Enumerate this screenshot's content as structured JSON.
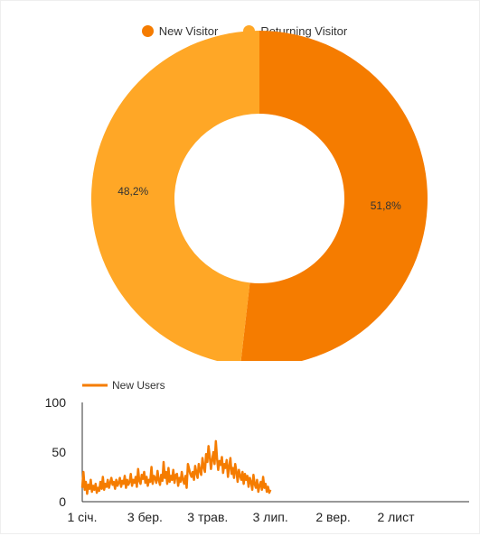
{
  "chart_data": [
    {
      "type": "pie",
      "variant": "donut",
      "legend_position": "top",
      "slices": [
        {
          "label": "New Visitor",
          "value": 51.8,
          "value_label": "51,8%",
          "color": "#f57c00"
        },
        {
          "label": "Returning Visitor",
          "value": 48.2,
          "value_label": "48,2%",
          "color": "#ffa726"
        }
      ]
    },
    {
      "type": "line",
      "legend_position": "top-left",
      "ylim": [
        0,
        100
      ],
      "yticks": [
        0,
        50,
        100
      ],
      "xtick_labels": [
        "1 січ.",
        "3 бер.",
        "3 трав.",
        "3 лип.",
        "2 вер.",
        "2 лист"
      ],
      "xtick_days": [
        0,
        61,
        122,
        183,
        244,
        305
      ],
      "series": [
        {
          "name": "New Users",
          "color": "#f57c00",
          "values": [
            14,
            30,
            12,
            20,
            8,
            17,
            13,
            22,
            10,
            16,
            12,
            18,
            9,
            14,
            11,
            20,
            13,
            25,
            12,
            18,
            15,
            22,
            14,
            19,
            24,
            17,
            20,
            13,
            22,
            16,
            19,
            24,
            15,
            21,
            18,
            26,
            14,
            22,
            17,
            20,
            28,
            16,
            22,
            19,
            25,
            15,
            33,
            21,
            18,
            27,
            23,
            30,
            19,
            25,
            16,
            22,
            20,
            35,
            18,
            26,
            24,
            19,
            31,
            22,
            17,
            27,
            21,
            40,
            24,
            30,
            18,
            34,
            20,
            26,
            22,
            32,
            19,
            27,
            28,
            16,
            24,
            20,
            30,
            22,
            18,
            26,
            14,
            38,
            33,
            28,
            25,
            30,
            22,
            36,
            29,
            24,
            38,
            31,
            27,
            44,
            35,
            30,
            48,
            40,
            56,
            46,
            33,
            42,
            50,
            38,
            61,
            44,
            32,
            41,
            37,
            45,
            29,
            38,
            34,
            42,
            25,
            35,
            44,
            28,
            34,
            24,
            38,
            30,
            20,
            32,
            26,
            22,
            30,
            18,
            28,
            22,
            26,
            15,
            24,
            20,
            12,
            27,
            18,
            14,
            22,
            10,
            16,
            20,
            12,
            25,
            14,
            18,
            10,
            15,
            9,
            12
          ]
        }
      ]
    }
  ]
}
